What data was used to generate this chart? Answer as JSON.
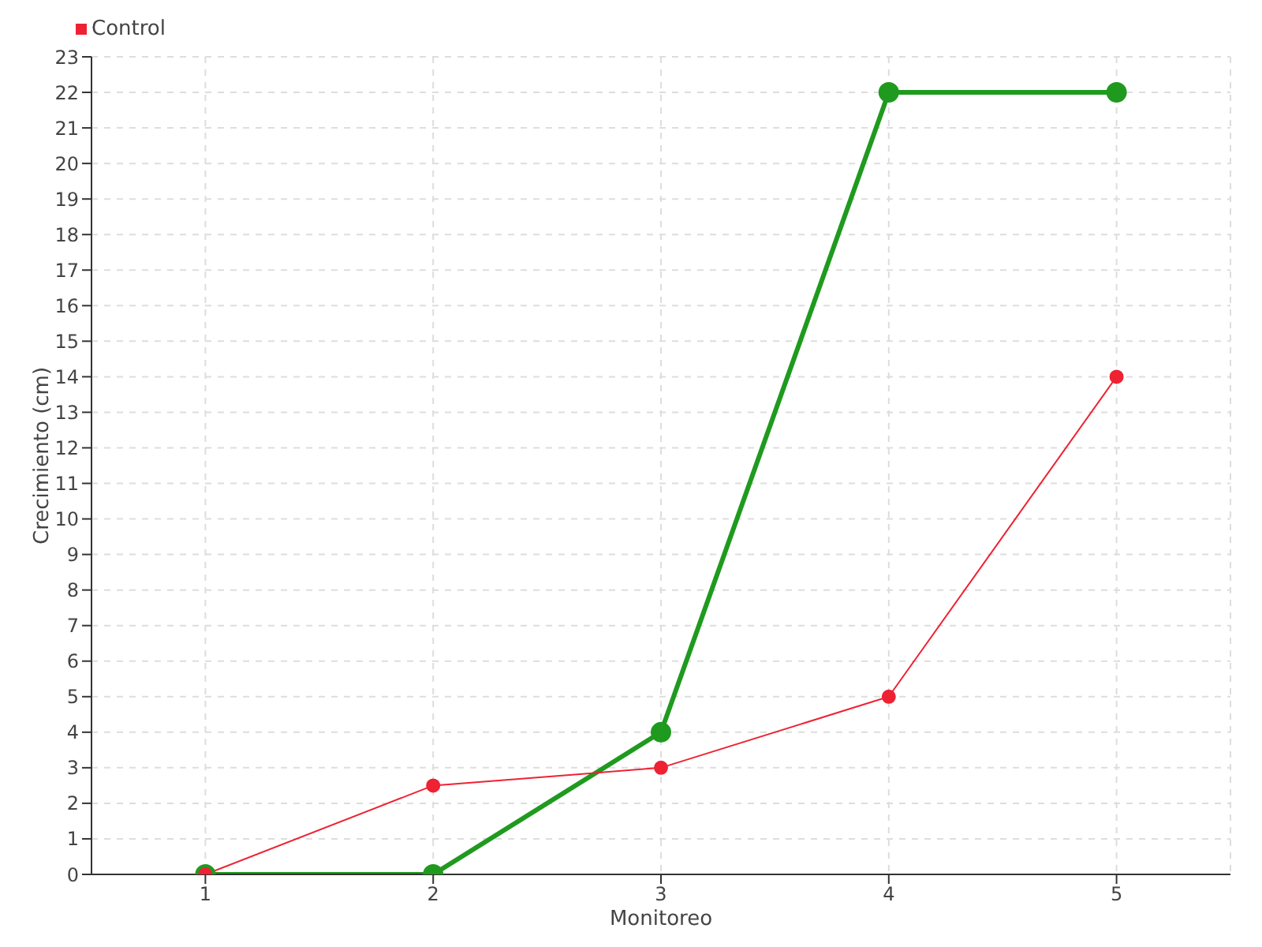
{
  "chart_data": {
    "type": "line",
    "xlabel": "Monitoreo",
    "ylabel": "Crecimiento (cm)",
    "x": [
      1,
      2,
      3,
      4,
      5
    ],
    "series": [
      {
        "color": "#1f9a1f",
        "values": [
          0,
          0,
          4,
          22,
          22
        ]
      },
      {
        "name": "Control",
        "color": "#ee2233",
        "values": [
          0,
          2.5,
          3,
          5,
          14
        ]
      }
    ],
    "xlim": [
      0.5,
      5.5
    ],
    "xticks": [
      1,
      2,
      3,
      4,
      5
    ],
    "ylim": [
      0,
      23
    ],
    "yticks": [
      0,
      1,
      2,
      3,
      4,
      5,
      6,
      7,
      8,
      9,
      10,
      11,
      12,
      13,
      14,
      15,
      16,
      17,
      18,
      19,
      20,
      21,
      22,
      23
    ],
    "grid": true,
    "legend": "top left",
    "marker": "circle",
    "line_style": "solid"
  }
}
